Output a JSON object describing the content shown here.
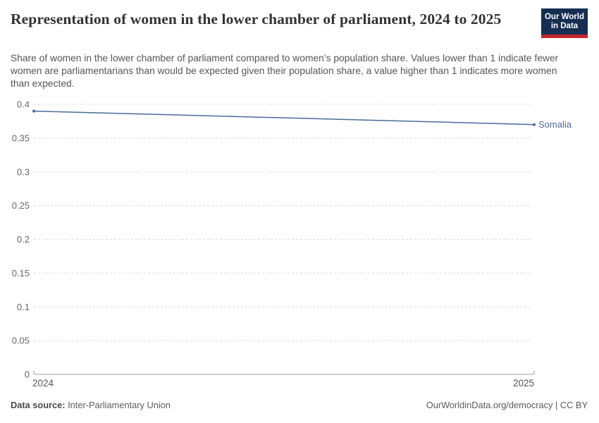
{
  "header": {
    "title": "Representation of women in the lower chamber of parliament, 2024 to 2025",
    "subtitle": "Share of women in the lower chamber of parliament compared to women’s population share. Values lower than 1 indicate fewer women are parliamentarians than would be expected given their population share, a value higher than 1 indicates more women than expected.",
    "logo": {
      "line1": "Our World",
      "line2": "in Data"
    }
  },
  "chart_data": {
    "type": "line",
    "title": "Representation of women in the lower chamber of parliament, 2024 to 2025",
    "x": [
      2024,
      2025
    ],
    "xtick_labels": [
      "2024",
      "2025"
    ],
    "xlabel": "",
    "ylabel": "",
    "ylim": [
      0,
      0.4
    ],
    "yticks": [
      {
        "value": 0,
        "label": "0"
      },
      {
        "value": 0.05,
        "label": "0.05"
      },
      {
        "value": 0.1,
        "label": "0.1"
      },
      {
        "value": 0.15,
        "label": "0.15"
      },
      {
        "value": 0.2,
        "label": "0.2"
      },
      {
        "value": 0.25,
        "label": "0.25"
      },
      {
        "value": 0.3,
        "label": "0.3"
      },
      {
        "value": 0.35,
        "label": "0.35"
      },
      {
        "value": 0.4,
        "label": "0.4"
      }
    ],
    "series": [
      {
        "name": "Somalia",
        "values": [
          0.39,
          0.37
        ],
        "color": "#4C6A9C"
      }
    ],
    "grid": "horizontal-dashed",
    "legend_position": "label-at-line-end",
    "colors": {
      "grid": "#DDDDDD",
      "axis": "#A3A3A3",
      "y_tick_label": "#666666",
      "x_tick_label": "#555555"
    }
  },
  "footer": {
    "source_label": "Data source:",
    "source_value": "Inter-Parliamentary Union",
    "license": "OurWorldinData.org/democracy | CC BY"
  },
  "theme": {
    "background": "#FFFFFF",
    "accent": "#4C6A9C",
    "logo_navy": "#152E52",
    "logo_red": "#C7252C"
  }
}
